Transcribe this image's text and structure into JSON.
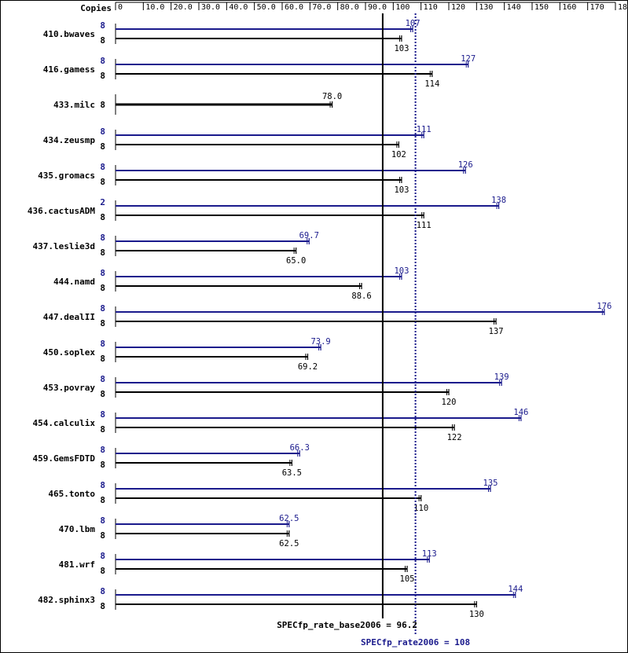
{
  "colors": {
    "base": "#000000",
    "peak": "#1a1a8c",
    "border": "#000000",
    "background": "#ffffff"
  },
  "chart_data": {
    "type": "bar",
    "orientation": "horizontal",
    "axis_header": "Copies",
    "xlim": [
      0,
      180
    ],
    "ticks": [
      "0",
      "10.0",
      "20.0",
      "30.0",
      "40.0",
      "50.0",
      "60.0",
      "70.0",
      "80.0",
      "90.0",
      "100",
      "110",
      "120",
      "130",
      "140",
      "150",
      "160",
      "170",
      "180"
    ],
    "categories": [
      "410.bwaves",
      "416.gamess",
      "433.milc",
      "434.zeusmp",
      "435.gromacs",
      "436.cactusADM",
      "437.leslie3d",
      "444.namd",
      "447.dealII",
      "450.soplex",
      "453.povray",
      "454.calculix",
      "459.GemsFDTD",
      "465.tonto",
      "470.lbm",
      "481.wrf",
      "482.sphinx3"
    ],
    "series": [
      {
        "key": "peak",
        "copies": [
          "8",
          "8",
          null,
          "8",
          "8",
          "2",
          "8",
          "8",
          "8",
          "8",
          "8",
          "8",
          "8",
          "8",
          "8",
          "8",
          "8"
        ],
        "values": [
          107,
          127,
          null,
          111,
          126,
          138,
          69.7,
          103,
          176,
          73.9,
          139,
          146,
          66.3,
          135,
          62.5,
          113,
          144
        ],
        "labels": [
          "107",
          "127",
          null,
          "111",
          "126",
          "138",
          "69.7",
          "103",
          "176",
          "73.9",
          "139",
          "146",
          "66.3",
          "135",
          "62.5",
          "113",
          "144"
        ]
      },
      {
        "key": "base",
        "copies": [
          "8",
          "8",
          "8",
          "8",
          "8",
          "8",
          "8",
          "8",
          "8",
          "8",
          "8",
          "8",
          "8",
          "8",
          "8",
          "8",
          "8"
        ],
        "values": [
          103,
          114,
          78.0,
          102,
          103,
          111,
          65.0,
          88.6,
          137,
          69.2,
          120,
          122,
          63.5,
          110,
          62.5,
          105,
          130
        ],
        "labels": [
          "103",
          "114",
          "78.0",
          "102",
          "103",
          "111",
          "65.0",
          "88.6",
          "137",
          "69.2",
          "120",
          "122",
          "63.5",
          "110",
          "62.5",
          "105",
          "130"
        ]
      }
    ],
    "summary": {
      "base_label": "SPECfp_rate_base2006 = 96.2",
      "base_value": 96.2,
      "peak_label": "SPECfp_rate2006 = 108",
      "peak_value": 108
    }
  }
}
